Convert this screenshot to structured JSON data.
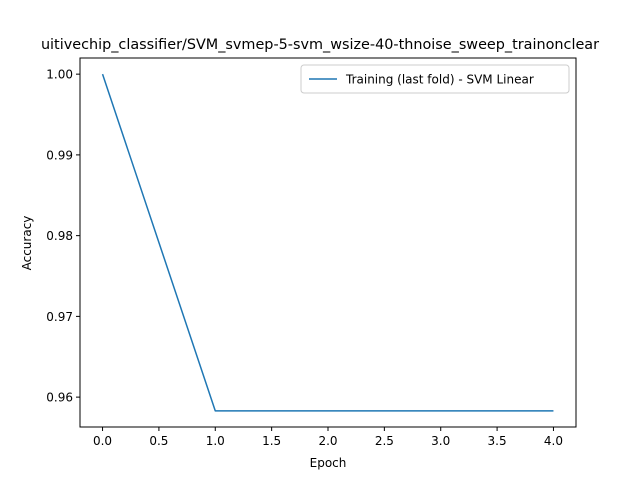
{
  "chart_data": {
    "type": "line",
    "title": "uitivechip_classifier/SVM_svmep-5-svm_wsize-40-thnoise_sweep_trainonclear",
    "xlabel": "Epoch",
    "ylabel": "Accuracy",
    "xlim": [
      -0.2,
      4.2
    ],
    "ylim": [
      0.9563,
      1.002
    ],
    "xticks": [
      0.0,
      0.5,
      1.0,
      1.5,
      2.0,
      2.5,
      3.0,
      3.5,
      4.0
    ],
    "xtick_labels": [
      "0.0",
      "0.5",
      "1.0",
      "1.5",
      "2.0",
      "2.5",
      "3.0",
      "3.5",
      "4.0"
    ],
    "yticks": [
      0.96,
      0.97,
      0.98,
      0.99,
      1.0
    ],
    "ytick_labels": [
      "0.96",
      "0.97",
      "0.98",
      "0.99",
      "1.00"
    ],
    "grid": false,
    "legend_position": "top-right",
    "series": [
      {
        "name": "Training (last fold) - SVM Linear",
        "color": "#1f77b4",
        "x": [
          0,
          1,
          2,
          3,
          4
        ],
        "y": [
          1.0,
          0.9583,
          0.9583,
          0.9583,
          0.9583
        ]
      }
    ]
  }
}
